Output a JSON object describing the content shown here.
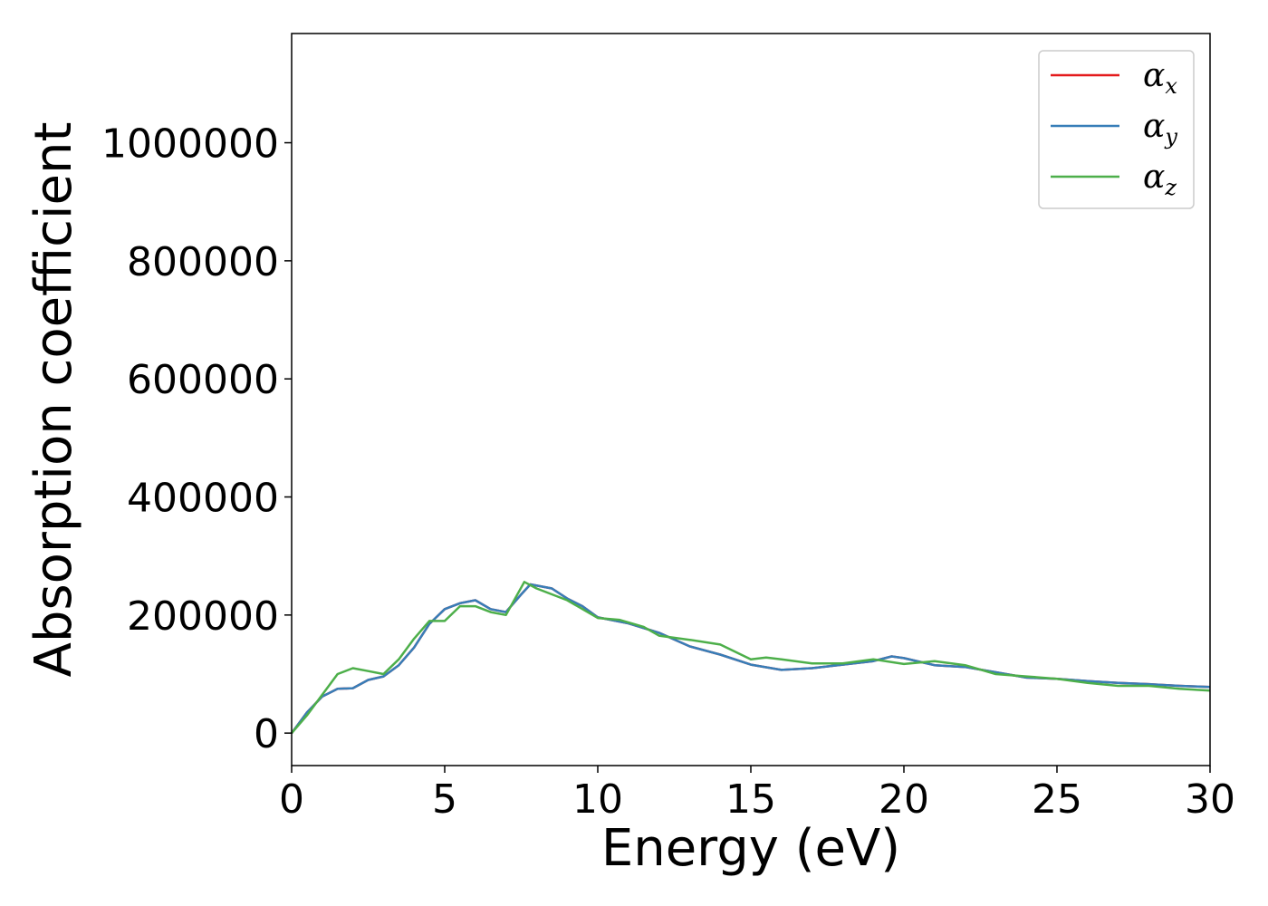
{
  "chart_data": {
    "type": "line",
    "title": "",
    "xlabel": "Energy (eV)",
    "ylabel": "Absorption coefficient",
    "xlim": [
      0,
      30
    ],
    "ylim": [
      -55000,
      1185000
    ],
    "x_ticks": [
      0,
      5,
      10,
      15,
      20,
      25,
      30
    ],
    "y_ticks": [
      0,
      200000,
      400000,
      600000,
      800000,
      1000000
    ],
    "grid": false,
    "legend_placement": "top-right",
    "series": [
      {
        "name": "x",
        "color": "#e41a1c",
        "points": [
          [
            0,
            0
          ],
          [
            0.5,
            35000
          ],
          [
            1,
            62000
          ],
          [
            1.5,
            75000
          ],
          [
            2,
            76000
          ],
          [
            2.5,
            90000
          ],
          [
            3,
            96000
          ],
          [
            3.5,
            115000
          ],
          [
            4,
            145000
          ],
          [
            4.5,
            185000
          ],
          [
            5,
            210000
          ],
          [
            5.5,
            220000
          ],
          [
            6,
            225000
          ],
          [
            6.5,
            210000
          ],
          [
            7,
            205000
          ],
          [
            7.5,
            235000
          ],
          [
            7.8,
            252000
          ],
          [
            8.5,
            245000
          ],
          [
            9,
            228000
          ],
          [
            9.5,
            215000
          ],
          [
            10,
            196000
          ],
          [
            11,
            186000
          ],
          [
            12,
            170000
          ],
          [
            13,
            147000
          ],
          [
            14,
            133000
          ],
          [
            15,
            116000
          ],
          [
            16,
            107000
          ],
          [
            17,
            110000
          ],
          [
            18,
            116000
          ],
          [
            19,
            122000
          ],
          [
            19.6,
            130000
          ],
          [
            20,
            127000
          ],
          [
            21,
            115000
          ],
          [
            22,
            112000
          ],
          [
            23,
            103000
          ],
          [
            24,
            94000
          ],
          [
            25,
            92000
          ],
          [
            26,
            88000
          ],
          [
            27,
            85000
          ],
          [
            28,
            83000
          ],
          [
            29,
            80000
          ],
          [
            30,
            78000
          ]
        ]
      },
      {
        "name": "y",
        "color": "#377eb8",
        "points": [
          [
            0,
            0
          ],
          [
            0.5,
            35000
          ],
          [
            1,
            62000
          ],
          [
            1.5,
            75000
          ],
          [
            2,
            76000
          ],
          [
            2.5,
            90000
          ],
          [
            3,
            96000
          ],
          [
            3.5,
            115000
          ],
          [
            4,
            145000
          ],
          [
            4.5,
            185000
          ],
          [
            5,
            210000
          ],
          [
            5.5,
            220000
          ],
          [
            6,
            225000
          ],
          [
            6.5,
            210000
          ],
          [
            7,
            205000
          ],
          [
            7.5,
            235000
          ],
          [
            7.8,
            252000
          ],
          [
            8.5,
            245000
          ],
          [
            9,
            228000
          ],
          [
            9.5,
            215000
          ],
          [
            10,
            196000
          ],
          [
            11,
            186000
          ],
          [
            12,
            170000
          ],
          [
            13,
            147000
          ],
          [
            14,
            133000
          ],
          [
            15,
            116000
          ],
          [
            16,
            107000
          ],
          [
            17,
            110000
          ],
          [
            18,
            116000
          ],
          [
            19,
            122000
          ],
          [
            19.6,
            130000
          ],
          [
            20,
            127000
          ],
          [
            21,
            115000
          ],
          [
            22,
            112000
          ],
          [
            23,
            103000
          ],
          [
            24,
            94000
          ],
          [
            25,
            92000
          ],
          [
            26,
            88000
          ],
          [
            27,
            85000
          ],
          [
            28,
            83000
          ],
          [
            29,
            80000
          ],
          [
            30,
            78000
          ]
        ]
      },
      {
        "name": "z",
        "color": "#4daf4a",
        "points": [
          [
            0,
            0
          ],
          [
            0.5,
            30000
          ],
          [
            1,
            65000
          ],
          [
            1.5,
            100000
          ],
          [
            2,
            110000
          ],
          [
            2.5,
            105000
          ],
          [
            3,
            100000
          ],
          [
            3.5,
            125000
          ],
          [
            4,
            160000
          ],
          [
            4.5,
            190000
          ],
          [
            5,
            190000
          ],
          [
            5.5,
            215000
          ],
          [
            6,
            215000
          ],
          [
            6.5,
            205000
          ],
          [
            7,
            200000
          ],
          [
            7.6,
            256000
          ],
          [
            8,
            245000
          ],
          [
            9,
            225000
          ],
          [
            10,
            195000
          ],
          [
            10.7,
            192000
          ],
          [
            11.5,
            180000
          ],
          [
            12,
            165000
          ],
          [
            13,
            158000
          ],
          [
            14,
            150000
          ],
          [
            15,
            125000
          ],
          [
            15.5,
            128000
          ],
          [
            16,
            125000
          ],
          [
            17,
            118000
          ],
          [
            18,
            118000
          ],
          [
            19,
            125000
          ],
          [
            20,
            117000
          ],
          [
            21,
            122000
          ],
          [
            22,
            115000
          ],
          [
            23,
            100000
          ],
          [
            24,
            96000
          ],
          [
            25,
            92000
          ],
          [
            26,
            85000
          ],
          [
            27,
            80000
          ],
          [
            28,
            80000
          ],
          [
            29,
            75000
          ],
          [
            30,
            72000
          ]
        ]
      }
    ]
  },
  "legend": {
    "symbol": "α",
    "items": [
      {
        "sub": "x",
        "color": "#e41a1c"
      },
      {
        "sub": "y",
        "color": "#377eb8"
      },
      {
        "sub": "z",
        "color": "#4daf4a"
      }
    ]
  }
}
